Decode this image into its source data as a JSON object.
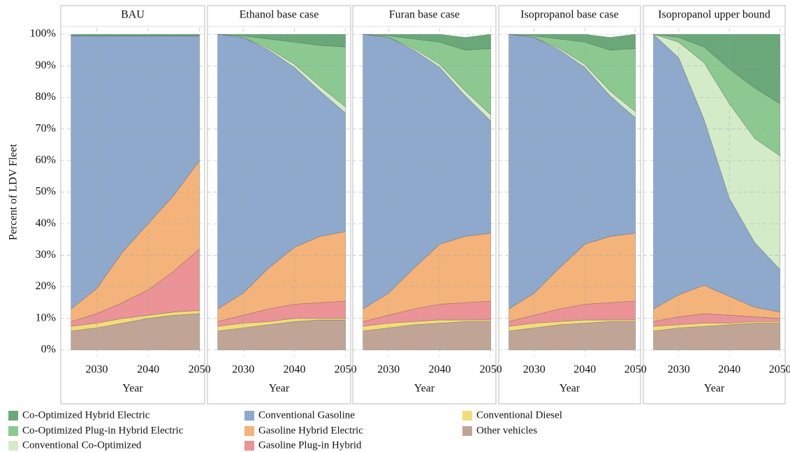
{
  "chart_data": [
    {
      "type": "area",
      "title": "BAU",
      "xlabel": "Year",
      "ylabel": "Percent of LDV Fleet",
      "x": [
        2025,
        2030,
        2035,
        2040,
        2045,
        2050
      ],
      "xlim": [
        2023,
        2051
      ],
      "xticks": [
        2030,
        2040,
        2050
      ],
      "ylim": [
        -2,
        102
      ],
      "grid": true,
      "yticks": [
        {
          "value": 0,
          "label": "0%"
        },
        {
          "value": 10,
          "label": "10%"
        },
        {
          "value": 20,
          "label": "20%"
        },
        {
          "value": 30,
          "label": "30%"
        },
        {
          "value": 40,
          "label": "40%"
        },
        {
          "value": 50,
          "label": "50%"
        },
        {
          "value": 60,
          "label": "60%"
        },
        {
          "value": 70,
          "label": "70%"
        },
        {
          "value": 80,
          "label": "80%"
        },
        {
          "value": 90,
          "label": "90%"
        },
        {
          "value": 100,
          "label": "100%"
        }
      ],
      "series": [
        {
          "values": [
            0.5,
            0.5,
            0.5,
            0.5,
            0.5,
            0.5
          ]
        },
        {
          "values": [
            0,
            0,
            0,
            0,
            0,
            0
          ]
        },
        {
          "values": [
            0,
            0,
            0,
            0,
            0,
            0
          ]
        },
        {
          "values": [
            86.5,
            80,
            68.5,
            59.5,
            50.5,
            39.5
          ]
        },
        {
          "values": [
            4,
            8,
            16,
            21,
            24,
            28
          ]
        },
        {
          "values": [
            1.5,
            3,
            5,
            8,
            13,
            19.5
          ]
        },
        {
          "values": [
            1.5,
            1.5,
            1.5,
            1,
            1,
            1
          ]
        },
        {
          "values": [
            6,
            7,
            8.5,
            10,
            11,
            11.5
          ]
        }
      ]
    },
    {
      "type": "area",
      "title": "Ethanol base case",
      "xlabel": "Year",
      "x": [
        2025,
        2030,
        2035,
        2040,
        2045,
        2050
      ],
      "xlim": [
        2023,
        2051
      ],
      "xticks": [
        2030,
        2040,
        2050
      ],
      "ylim": [
        -2,
        102
      ],
      "grid": true,
      "series": [
        {
          "values": [
            0,
            0.5,
            1.5,
            2.5,
            3.5,
            4
          ]
        },
        {
          "values": [
            0,
            0.5,
            3,
            7,
            13,
            19
          ]
        },
        {
          "values": [
            0,
            0,
            0.5,
            1,
            1.5,
            2
          ]
        },
        {
          "values": [
            87,
            81,
            69,
            57,
            46,
            37.5
          ]
        },
        {
          "values": [
            4,
            7,
            13,
            18,
            21,
            22
          ]
        },
        {
          "values": [
            1.5,
            2.5,
            4,
            4.5,
            5,
            5.5
          ]
        },
        {
          "values": [
            1.5,
            1.5,
            1,
            1,
            0.5,
            0.5
          ]
        },
        {
          "values": [
            6,
            7,
            8,
            9,
            9.5,
            9.5
          ]
        }
      ]
    },
    {
      "type": "area",
      "title": "Furan base case",
      "xlabel": "Year",
      "x": [
        2025,
        2030,
        2035,
        2040,
        2045,
        2050
      ],
      "xlim": [
        2023,
        2051
      ],
      "xticks": [
        2030,
        2040,
        2050
      ],
      "ylim": [
        -2,
        102
      ],
      "grid": true,
      "series": [
        {
          "values": [
            0,
            0.5,
            1.5,
            2.5,
            4,
            4.5
          ]
        },
        {
          "values": [
            0,
            0.5,
            3,
            7,
            13,
            21
          ]
        },
        {
          "values": [
            0,
            0,
            0.5,
            1,
            1.5,
            2
          ]
        },
        {
          "values": [
            87,
            81,
            69,
            56,
            44.5,
            35.5
          ]
        },
        {
          "values": [
            4,
            7,
            13,
            19,
            21,
            21.5
          ]
        },
        {
          "values": [
            1.5,
            2.5,
            4,
            5,
            5.5,
            6
          ]
        },
        {
          "values": [
            1.5,
            1.5,
            1,
            1,
            0.5,
            0.5
          ]
        },
        {
          "values": [
            6,
            7,
            8,
            8.5,
            9,
            9
          ]
        }
      ]
    },
    {
      "type": "area",
      "title": "Isopropanol base case",
      "xlabel": "Year",
      "x": [
        2025,
        2030,
        2035,
        2040,
        2045,
        2050
      ],
      "xlim": [
        2023,
        2051
      ],
      "xticks": [
        2030,
        2040,
        2050
      ],
      "ylim": [
        -2,
        102
      ],
      "grid": true,
      "series": [
        {
          "values": [
            0,
            0.5,
            1.5,
            2.5,
            4,
            4.5
          ]
        },
        {
          "values": [
            0,
            0.5,
            3,
            7,
            13,
            20
          ]
        },
        {
          "values": [
            0,
            0,
            0.5,
            1,
            1.5,
            2
          ]
        },
        {
          "values": [
            87,
            81,
            69,
            56,
            44.5,
            36.5
          ]
        },
        {
          "values": [
            4,
            7,
            13,
            19,
            21,
            21.5
          ]
        },
        {
          "values": [
            1.5,
            2.5,
            4,
            5,
            5.5,
            6
          ]
        },
        {
          "values": [
            1.5,
            1.5,
            1,
            1,
            0.5,
            0.5
          ]
        },
        {
          "values": [
            6,
            7,
            8,
            8.5,
            9,
            9
          ]
        }
      ]
    },
    {
      "type": "area",
      "title": "Isopropanol upper bound",
      "xlabel": "Year",
      "x": [
        2025,
        2030,
        2035,
        2040,
        2045,
        2050
      ],
      "xlim": [
        2023,
        2051
      ],
      "xticks": [
        2030,
        2040,
        2050
      ],
      "ylim": [
        -2,
        102
      ],
      "grid": true,
      "series": [
        {
          "values": [
            0,
            1,
            4,
            11,
            17,
            22
          ]
        },
        {
          "values": [
            0,
            1.5,
            5,
            11,
            16,
            16.5
          ]
        },
        {
          "values": [
            0,
            5,
            18,
            30,
            33,
            36
          ]
        },
        {
          "values": [
            87,
            75,
            52.5,
            31,
            20.5,
            13.5
          ]
        },
        {
          "values": [
            4,
            7,
            9,
            6,
            3,
            2
          ]
        },
        {
          "values": [
            1.5,
            2.5,
            3,
            2.5,
            1.5,
            1
          ]
        },
        {
          "values": [
            1.5,
            1,
            1,
            0.5,
            0.5,
            0.5
          ]
        },
        {
          "values": [
            6,
            7,
            7.5,
            8,
            8.5,
            8.5
          ]
        }
      ]
    }
  ],
  "legend": [
    {
      "name": "Co-Optimized Hybrid Electric",
      "color": "#6aa87a"
    },
    {
      "name": "Co-Optimized Plug-in Hybrid Electric",
      "color": "#8cc990"
    },
    {
      "name": "Conventional Co-Optimized",
      "color": "#d4ebc8"
    },
    {
      "name": "Conventional Gasoline",
      "color": "#8fa9cc"
    },
    {
      "name": "Gasoline Hybrid Electric",
      "color": "#f4b37a"
    },
    {
      "name": "Gasoline Plug-in Hybrid",
      "color": "#ec9397"
    },
    {
      "name": "Conventional Diesel",
      "color": "#f3dc7a"
    },
    {
      "name": "Other vehicles",
      "color": "#c0a597"
    }
  ]
}
